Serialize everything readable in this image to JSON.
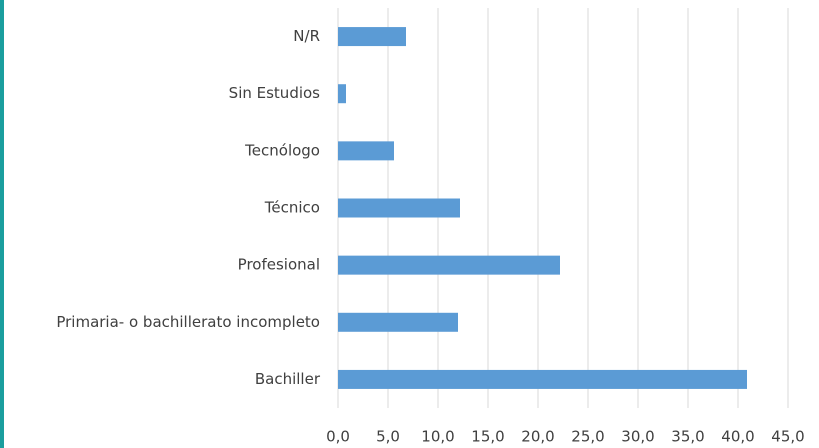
{
  "chart_data": {
    "type": "barh",
    "categories": [
      "N/R",
      "Sin Estudios",
      "Tecnólogo",
      "Técnico",
      "Profesional",
      "Primaria- o bachillerato incompleto",
      "Bachiller"
    ],
    "values": [
      6.8,
      0.8,
      5.6,
      12.2,
      22.2,
      12.0,
      40.9
    ],
    "color": "#5b9bd5",
    "xlim": [
      0,
      45
    ],
    "xticks": [
      {
        "value": 0,
        "label": "0,0"
      },
      {
        "value": 5,
        "label": "5,0"
      },
      {
        "value": 10,
        "label": "10,0"
      },
      {
        "value": 15,
        "label": "15,0"
      },
      {
        "value": 20,
        "label": "20,0"
      },
      {
        "value": 25,
        "label": "25,0"
      },
      {
        "value": 30,
        "label": "30,0"
      },
      {
        "value": 35,
        "label": "35,0"
      },
      {
        "value": 40,
        "label": "40,0"
      },
      {
        "value": 45,
        "label": "45,0"
      }
    ],
    "grid": true
  }
}
